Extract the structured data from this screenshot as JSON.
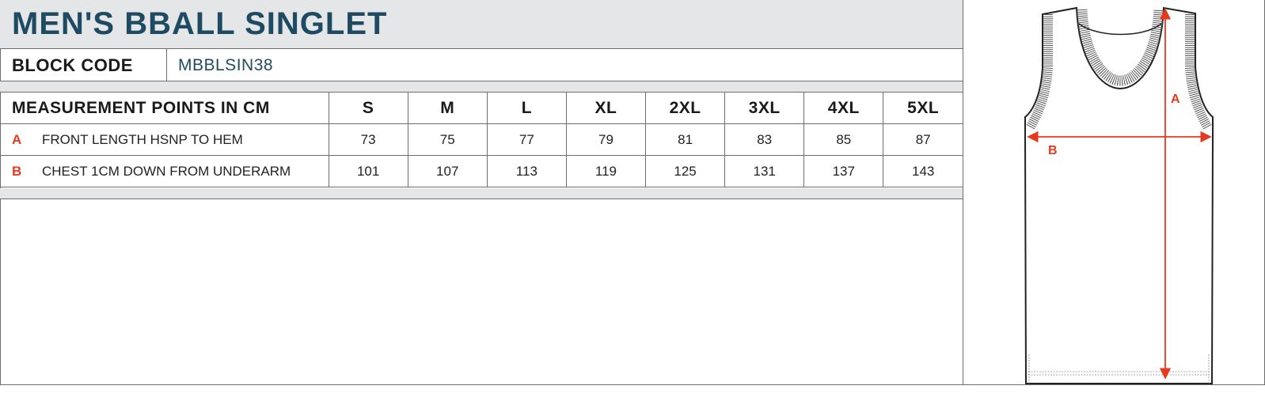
{
  "title": "MEN'S BBALL SINGLET",
  "block_code": {
    "label": "BLOCK CODE",
    "value": "MBBLSIN38"
  },
  "table": {
    "header": "MEASUREMENT POINTS IN CM",
    "sizes": [
      "S",
      "M",
      "L",
      "XL",
      "2XL",
      "3XL",
      "4XL",
      "5XL"
    ],
    "rows": [
      {
        "key": "A",
        "label": "FRONT LENGTH HSNP TO HEM",
        "values": [
          "73",
          "75",
          "77",
          "79",
          "81",
          "83",
          "85",
          "87"
        ]
      },
      {
        "key": "B",
        "label": "CHEST 1CM DOWN FROM UNDERARM",
        "values": [
          "101",
          "107",
          "113",
          "119",
          "125",
          "131",
          "137",
          "143"
        ]
      }
    ]
  },
  "diagram": {
    "label_a": "A",
    "label_b": "B",
    "measure_color": "#e63a1e",
    "title_color": "#1f4b62"
  }
}
